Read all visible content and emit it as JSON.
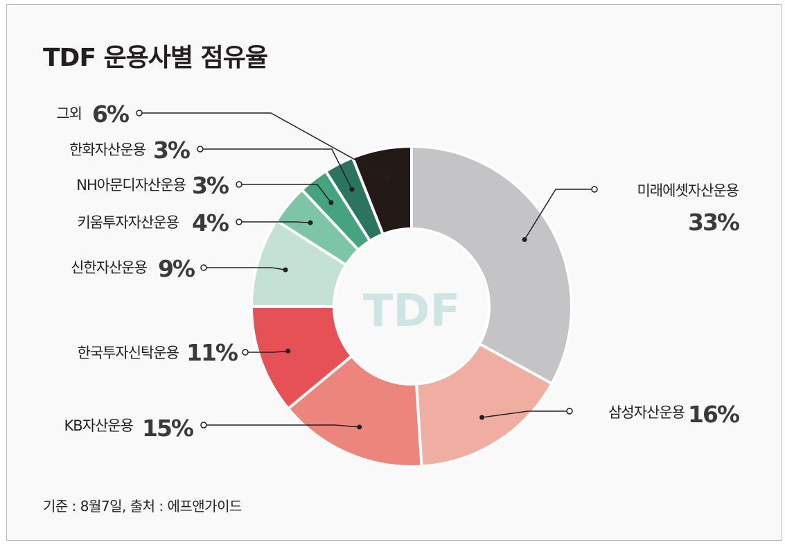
{
  "chart_data": {
    "type": "pie",
    "title": "TDF 운용사별 점유율",
    "center_label": "TDF",
    "unit": "%",
    "slices": [
      {
        "label": "미래에셋자산운용",
        "value": 33,
        "color": "#c4c4c6"
      },
      {
        "label": "삼성자산운용",
        "value": 16,
        "color": "#f0aea3"
      },
      {
        "label": "KB자산운용",
        "value": 15,
        "color": "#ec857b"
      },
      {
        "label": "한국투자신탁운용",
        "value": 11,
        "color": "#e65156"
      },
      {
        "label": "신한자산운용",
        "value": 9,
        "color": "#c4e2d3"
      },
      {
        "label": "키움투자자산운용",
        "value": 4,
        "color": "#7ec4a6"
      },
      {
        "label": "NH아문디자산운용",
        "value": 3,
        "color": "#45a47f"
      },
      {
        "label": "한화자산운용",
        "value": 3,
        "color": "#2b7560"
      },
      {
        "label": "그외",
        "value": 6,
        "color": "#231a17"
      }
    ],
    "note": "기준 : 8월7일, 출처 : 에프앤가이드"
  }
}
